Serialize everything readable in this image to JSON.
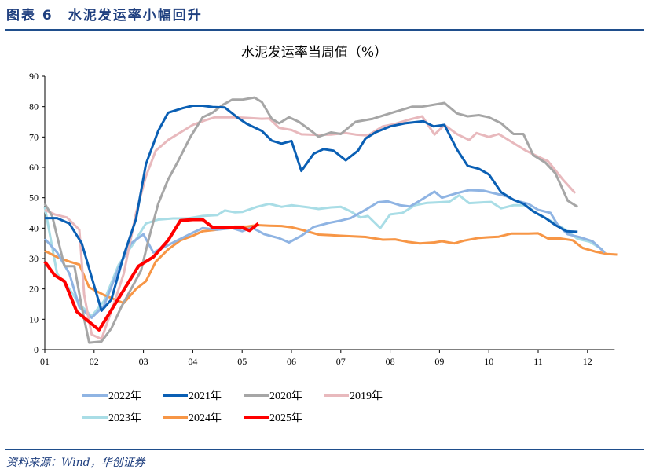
{
  "header": {
    "title": "图表 6　水泥发运率小幅回升"
  },
  "source": "资料来源：Wind，华创证券",
  "chart_data": {
    "type": "line",
    "title": "水泥发运率当周值（%）",
    "xlabel": "",
    "ylabel": "",
    "ylim": [
      0,
      90
    ],
    "xlim": [
      1,
      12.55
    ],
    "yticks": [
      "0",
      "10",
      "20",
      "30",
      "40",
      "50",
      "60",
      "70",
      "80",
      "90"
    ],
    "xticks": [
      "01",
      "02",
      "03",
      "04",
      "05",
      "06",
      "07",
      "08",
      "09",
      "10",
      "11",
      "12"
    ],
    "grid": false,
    "legend_position": "bottom",
    "series": [
      {
        "name": "2022年",
        "color": "#8fb4e3",
        "width": 3,
        "points": [
          [
            1,
            36.5
          ],
          [
            1.25,
            32
          ],
          [
            1.5,
            25
          ],
          [
            1.7,
            14
          ],
          [
            1.95,
            10.5
          ],
          [
            2.2,
            14.5
          ],
          [
            2.5,
            27
          ],
          [
            2.75,
            35
          ],
          [
            3.0,
            38
          ],
          [
            3.2,
            32
          ],
          [
            3.45,
            34
          ],
          [
            3.75,
            36.5
          ],
          [
            4.0,
            38.5
          ],
          [
            4.2,
            40
          ],
          [
            4.5,
            39.5
          ],
          [
            4.8,
            40
          ],
          [
            5.0,
            39
          ],
          [
            5.2,
            40.2
          ],
          [
            5.45,
            38
          ],
          [
            5.75,
            36.7
          ],
          [
            5.95,
            35.3
          ],
          [
            6.2,
            37.5
          ],
          [
            6.45,
            40.4
          ],
          [
            6.75,
            41.7
          ],
          [
            7.0,
            42.5
          ],
          [
            7.2,
            43.3
          ],
          [
            7.5,
            46
          ],
          [
            7.75,
            48.5
          ],
          [
            7.95,
            48.8
          ],
          [
            8.2,
            47.5
          ],
          [
            8.4,
            47.1
          ],
          [
            8.6,
            49
          ],
          [
            8.9,
            52
          ],
          [
            9.05,
            50
          ],
          [
            9.35,
            51.5
          ],
          [
            9.6,
            52.5
          ],
          [
            9.9,
            52.3
          ],
          [
            10.1,
            51.5
          ],
          [
            10.35,
            50.5
          ],
          [
            10.55,
            49
          ],
          [
            10.8,
            48
          ],
          [
            11.0,
            46
          ],
          [
            11.25,
            45
          ],
          [
            11.4,
            41
          ],
          [
            11.6,
            38
          ],
          [
            11.85,
            37
          ],
          [
            12.1,
            35.7
          ],
          [
            12.35,
            32
          ]
        ]
      },
      {
        "name": "2021年",
        "color": "#0a5fb4",
        "width": 3,
        "points": [
          [
            1,
            43.3
          ],
          [
            1.25,
            43.3
          ],
          [
            1.5,
            41.5
          ],
          [
            1.75,
            35
          ],
          [
            2.15,
            12.8
          ],
          [
            2.35,
            16.5
          ],
          [
            2.6,
            31
          ],
          [
            2.85,
            43
          ],
          [
            3.05,
            61
          ],
          [
            3.3,
            72
          ],
          [
            3.5,
            78
          ],
          [
            3.8,
            79.5
          ],
          [
            4.0,
            80.3
          ],
          [
            4.2,
            80.3
          ],
          [
            4.4,
            79.9
          ],
          [
            4.65,
            79.7
          ],
          [
            4.9,
            76.5
          ],
          [
            5.1,
            74.3
          ],
          [
            5.4,
            72
          ],
          [
            5.6,
            68.8
          ],
          [
            5.8,
            67.8
          ],
          [
            6.0,
            68.7
          ],
          [
            6.2,
            58.8
          ],
          [
            6.45,
            64.5
          ],
          [
            6.65,
            66
          ],
          [
            6.85,
            65.5
          ],
          [
            7.1,
            62.3
          ],
          [
            7.35,
            65.5
          ],
          [
            7.5,
            69.5
          ],
          [
            7.7,
            71.5
          ],
          [
            8.0,
            73.5
          ],
          [
            8.3,
            74.5
          ],
          [
            8.67,
            75.2
          ],
          [
            8.88,
            73.5
          ],
          [
            9.1,
            74
          ],
          [
            9.35,
            66
          ],
          [
            9.57,
            60.5
          ],
          [
            9.8,
            59.5
          ],
          [
            10.0,
            57.7
          ],
          [
            10.25,
            51.8
          ],
          [
            10.5,
            49.3
          ],
          [
            10.7,
            48
          ],
          [
            10.9,
            45.5
          ],
          [
            11.15,
            43.3
          ],
          [
            11.35,
            41
          ],
          [
            11.57,
            39
          ],
          [
            11.8,
            38.8
          ]
        ]
      },
      {
        "name": "2020年",
        "color": "#a6a6a6",
        "width": 3,
        "points": [
          [
            1,
            48
          ],
          [
            1.15,
            44
          ],
          [
            1.4,
            27.5
          ],
          [
            1.6,
            27.5
          ],
          [
            1.75,
            14
          ],
          [
            1.9,
            2.3
          ],
          [
            2.15,
            2.7
          ],
          [
            2.35,
            7
          ],
          [
            2.55,
            14
          ],
          [
            2.75,
            20
          ],
          [
            2.95,
            26
          ],
          [
            3.1,
            36
          ],
          [
            3.3,
            48
          ],
          [
            3.5,
            56
          ],
          [
            3.7,
            62
          ],
          [
            3.95,
            70
          ],
          [
            4.2,
            76.5
          ],
          [
            4.4,
            78
          ],
          [
            4.6,
            80.5
          ],
          [
            4.8,
            82.3
          ],
          [
            5.0,
            82.3
          ],
          [
            5.25,
            83
          ],
          [
            5.4,
            81.5
          ],
          [
            5.6,
            76
          ],
          [
            5.75,
            74.5
          ],
          [
            5.95,
            76.5
          ],
          [
            6.15,
            75
          ],
          [
            6.4,
            72
          ],
          [
            6.55,
            70.1
          ],
          [
            6.8,
            71.5
          ],
          [
            7.0,
            71
          ],
          [
            7.3,
            75
          ],
          [
            7.65,
            76
          ],
          [
            8.0,
            77.8
          ],
          [
            8.45,
            80
          ],
          [
            8.65,
            80
          ],
          [
            9.1,
            81.2
          ],
          [
            9.35,
            77.8
          ],
          [
            9.57,
            76.8
          ],
          [
            9.8,
            77.2
          ],
          [
            10.0,
            76.5
          ],
          [
            10.25,
            74.5
          ],
          [
            10.5,
            71
          ],
          [
            10.7,
            71
          ],
          [
            10.9,
            64
          ],
          [
            11.15,
            61.5
          ],
          [
            11.35,
            58
          ],
          [
            11.6,
            49
          ],
          [
            11.8,
            47
          ]
        ]
      },
      {
        "name": "2019年",
        "color": "#e8b9bd",
        "width": 3,
        "points": [
          [
            1,
            46
          ],
          [
            1.2,
            44.5
          ],
          [
            1.45,
            43.5
          ],
          [
            1.7,
            39.5
          ],
          [
            1.8,
            18
          ],
          [
            1.95,
            5
          ],
          [
            2.15,
            3.5
          ],
          [
            2.4,
            15
          ],
          [
            2.6,
            25
          ],
          [
            2.85,
            45
          ],
          [
            3.05,
            57
          ],
          [
            3.25,
            65.5
          ],
          [
            3.5,
            69
          ],
          [
            3.75,
            71.5
          ],
          [
            4.0,
            74
          ],
          [
            4.25,
            75.5
          ],
          [
            4.45,
            76.5
          ],
          [
            4.85,
            76.5
          ],
          [
            5.1,
            76.3
          ],
          [
            5.4,
            76
          ],
          [
            5.55,
            76.1
          ],
          [
            5.75,
            73
          ],
          [
            6.0,
            72.3
          ],
          [
            6.2,
            70.9
          ],
          [
            6.5,
            70.7
          ],
          [
            6.8,
            70.8
          ],
          [
            7.1,
            71.3
          ],
          [
            7.3,
            70.8
          ],
          [
            7.55,
            70.5
          ],
          [
            7.85,
            73.5
          ],
          [
            8.1,
            74.3
          ],
          [
            8.4,
            75.8
          ],
          [
            8.65,
            76.8
          ],
          [
            8.9,
            70.8
          ],
          [
            9.1,
            74
          ],
          [
            9.35,
            71
          ],
          [
            9.6,
            69
          ],
          [
            9.75,
            71.3
          ],
          [
            10.0,
            70
          ],
          [
            10.2,
            71
          ],
          [
            10.5,
            68
          ],
          [
            10.75,
            65.5
          ],
          [
            11.0,
            63.5
          ],
          [
            11.2,
            62
          ],
          [
            11.5,
            56
          ],
          [
            11.75,
            51.5
          ]
        ]
      },
      {
        "name": "2023年",
        "color": "#a9dde6",
        "width": 3,
        "points": [
          [
            1,
            47
          ],
          [
            1.25,
            25
          ],
          [
            1.5,
            20
          ],
          [
            1.7,
            15
          ],
          [
            1.95,
            11
          ],
          [
            2.2,
            16
          ],
          [
            2.5,
            28
          ],
          [
            2.8,
            35
          ],
          [
            3.05,
            41.5
          ],
          [
            3.3,
            42.8
          ],
          [
            3.6,
            43.2
          ],
          [
            3.9,
            43.2
          ],
          [
            4.2,
            44
          ],
          [
            4.5,
            44.3
          ],
          [
            4.65,
            45.8
          ],
          [
            4.85,
            45.2
          ],
          [
            5.0,
            45.3
          ],
          [
            5.3,
            47
          ],
          [
            5.55,
            48
          ],
          [
            5.8,
            47
          ],
          [
            6.0,
            47.5
          ],
          [
            6.35,
            46.8
          ],
          [
            6.55,
            46.3
          ],
          [
            6.8,
            46.8
          ],
          [
            7.0,
            47
          ],
          [
            7.2,
            45.5
          ],
          [
            7.4,
            43.5
          ],
          [
            7.55,
            44
          ],
          [
            7.8,
            40
          ],
          [
            8.0,
            44.5
          ],
          [
            8.25,
            45
          ],
          [
            8.5,
            47.5
          ],
          [
            8.75,
            48.3
          ],
          [
            9.0,
            48.5
          ],
          [
            9.2,
            48.7
          ],
          [
            9.4,
            50.8
          ],
          [
            9.6,
            48.2
          ],
          [
            9.9,
            48.5
          ],
          [
            10.05,
            48.6
          ],
          [
            10.25,
            46.5
          ],
          [
            10.5,
            47.5
          ],
          [
            10.75,
            47.5
          ],
          [
            11.0,
            44.5
          ],
          [
            11.3,
            42
          ],
          [
            11.5,
            40
          ],
          [
            11.8,
            36.5
          ],
          [
            12.05,
            35.5
          ],
          [
            12.3,
            33
          ]
        ]
      },
      {
        "name": "2024年",
        "color": "#f79646",
        "width": 3,
        "points": [
          [
            1,
            32.5
          ],
          [
            1.25,
            30.5
          ],
          [
            1.5,
            29
          ],
          [
            1.7,
            28
          ],
          [
            1.9,
            20.5
          ],
          [
            2.2,
            18
          ],
          [
            2.5,
            16
          ],
          [
            2.6,
            15.3
          ],
          [
            2.85,
            20
          ],
          [
            3.05,
            22.5
          ],
          [
            3.25,
            29
          ],
          [
            3.5,
            33
          ],
          [
            3.75,
            36
          ],
          [
            4.0,
            37.5
          ],
          [
            4.2,
            39
          ],
          [
            4.5,
            39.5
          ],
          [
            4.85,
            40.5
          ],
          [
            5.1,
            40.5
          ],
          [
            5.3,
            41
          ],
          [
            5.55,
            40.8
          ],
          [
            5.8,
            40.7
          ],
          [
            6.0,
            40.3
          ],
          [
            6.2,
            39.5
          ],
          [
            6.55,
            37.9
          ],
          [
            6.8,
            37.7
          ],
          [
            7.0,
            37.5
          ],
          [
            7.5,
            37.1
          ],
          [
            7.85,
            36.2
          ],
          [
            8.1,
            36.3
          ],
          [
            8.35,
            35.5
          ],
          [
            8.6,
            35
          ],
          [
            8.9,
            35.3
          ],
          [
            9.05,
            35.7
          ],
          [
            9.3,
            35
          ],
          [
            9.5,
            35.9
          ],
          [
            9.8,
            36.8
          ],
          [
            10.0,
            37
          ],
          [
            10.2,
            37.2
          ],
          [
            10.45,
            38.2
          ],
          [
            10.8,
            38.2
          ],
          [
            11.0,
            38.3
          ],
          [
            11.2,
            36.6
          ],
          [
            11.45,
            36.6
          ],
          [
            11.7,
            36
          ],
          [
            11.9,
            33.5
          ],
          [
            12.15,
            32.3
          ],
          [
            12.4,
            31.5
          ],
          [
            12.6,
            31.3
          ]
        ]
      },
      {
        "name": "2025年",
        "color": "#ff0000",
        "width": 4,
        "points": [
          [
            1,
            29
          ],
          [
            1.2,
            24.5
          ],
          [
            1.4,
            22.5
          ],
          [
            1.65,
            12.5
          ],
          [
            2.1,
            6.5
          ],
          [
            2.5,
            17
          ],
          [
            2.9,
            27.5
          ],
          [
            3.2,
            30.5
          ],
          [
            3.5,
            36
          ],
          [
            3.75,
            42.5
          ],
          [
            4.0,
            42.8
          ],
          [
            4.2,
            42.8
          ],
          [
            4.4,
            40.3
          ],
          [
            4.8,
            40.3
          ],
          [
            5.0,
            40.2
          ],
          [
            5.15,
            39.2
          ],
          [
            5.33,
            41.5
          ]
        ]
      }
    ]
  }
}
